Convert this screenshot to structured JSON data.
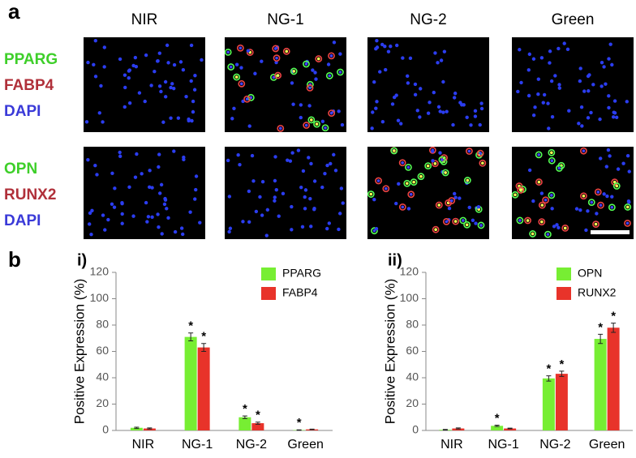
{
  "figure": {
    "panel_a": "a",
    "panel_b": "b",
    "columns": [
      "NIR",
      "NG-1",
      "NG-2",
      "Green"
    ],
    "rows": [
      [
        {
          "text": "PPARG",
          "color": "#3ecf2a"
        },
        {
          "text": "FABP4",
          "color": "#b0303a"
        },
        {
          "text": "DAPI",
          "color": "#3a3ad8"
        }
      ],
      [
        {
          "text": "OPN",
          "color": "#3ecf2a"
        },
        {
          "text": "RUNX2",
          "color": "#b0303a"
        },
        {
          "text": "DAPI",
          "color": "#3a3ad8"
        }
      ]
    ]
  },
  "chart_data": [
    {
      "type": "bar",
      "label": "i)",
      "y_label": "Positive Expression (%)",
      "categories": [
        "NIR",
        "NG-1",
        "NG-2",
        "Green"
      ],
      "ylim": [
        0,
        120
      ],
      "yticks": [
        0,
        20,
        40,
        60,
        80,
        100,
        120
      ],
      "series": [
        {
          "name": "PPARG",
          "color": "#77ee33",
          "values": [
            2,
            71,
            10,
            0.3
          ],
          "errors": [
            0.5,
            3,
            1,
            0.2
          ],
          "significance": [
            null,
            "*",
            "*",
            "*"
          ]
        },
        {
          "name": "FABP4",
          "color": "#e8332a",
          "values": [
            1.5,
            63,
            5.5,
            0.8
          ],
          "errors": [
            0.4,
            3,
            0.8,
            0.2
          ],
          "significance": [
            null,
            "*",
            "*",
            null
          ]
        }
      ]
    },
    {
      "type": "bar",
      "label": "ii)",
      "y_label": "Positive Expression (%)",
      "categories": [
        "NIR",
        "NG-1",
        "NG-2",
        "Green"
      ],
      "ylim": [
        0,
        120
      ],
      "yticks": [
        0,
        20,
        40,
        60,
        80,
        100,
        120
      ],
      "series": [
        {
          "name": "OPN",
          "color": "#77ee33",
          "values": [
            0.5,
            3.5,
            39.5,
            69.5
          ],
          "errors": [
            0.3,
            0.5,
            2,
            3.5
          ],
          "significance": [
            null,
            "*",
            "*",
            "*"
          ]
        },
        {
          "name": "RUNX2",
          "color": "#e8332a",
          "values": [
            1.5,
            1.5,
            43,
            78
          ],
          "errors": [
            0.4,
            0.3,
            2,
            3.5
          ],
          "significance": [
            null,
            null,
            "*",
            "*"
          ]
        }
      ]
    }
  ]
}
